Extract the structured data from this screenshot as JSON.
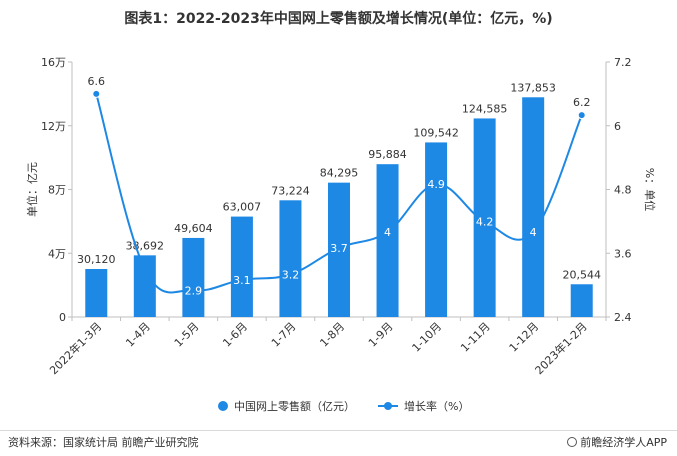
{
  "title": "图表1：2022-2023年中国网上零售额及增长情况(单位：亿元，%)",
  "chart_data": {
    "type": "bar+line",
    "categories": [
      "2022年1-3月",
      "1-4月",
      "1-5月",
      "1-6月",
      "1-7月",
      "1-8月",
      "1-9月",
      "1-10月",
      "1-11月",
      "1-12月",
      "2023年1-2月"
    ],
    "series": [
      {
        "name": "中国网上零售额（亿元）",
        "type": "bar",
        "axis": "left",
        "color": "#1e88e5",
        "values": [
          30120,
          38692,
          49604,
          63007,
          73224,
          84295,
          95884,
          109542,
          124585,
          137853,
          20544
        ],
        "labels": [
          "30,120",
          "38,692",
          "49,604",
          "63,007",
          "73,224",
          "84,295",
          "95,884",
          "109,542",
          "124,585",
          "137,853",
          "20,544"
        ]
      },
      {
        "name": "增长率（%）",
        "type": "line",
        "axis": "right",
        "color": "#1e88e5",
        "values": [
          6.6,
          3.3,
          2.9,
          3.1,
          3.2,
          3.7,
          4,
          4.9,
          4.2,
          4,
          6.2
        ],
        "labels": [
          "6.6",
          "",
          "2.9",
          "3.1",
          "3.2",
          "3.7",
          "4",
          "4.9",
          "4.2",
          "4",
          "6.2"
        ]
      }
    ],
    "y_left": {
      "label": "单位：亿元",
      "ylim": [
        0,
        160000
      ],
      "ticks": [
        0,
        40000,
        80000,
        120000,
        160000
      ],
      "tick_labels": [
        "0",
        "4万",
        "8万",
        "12万",
        "16万"
      ]
    },
    "y_right": {
      "label": "%：单位",
      "ylim": [
        2.4,
        7.2
      ],
      "ticks": [
        2.4,
        3.6,
        4.8,
        6,
        7.2
      ],
      "tick_labels": [
        "2.4",
        "3.6",
        "4.8",
        "6",
        "7.2"
      ]
    },
    "grid": false,
    "legend": "bottom"
  },
  "footer": {
    "source": "资料来源：国家统计局 前瞻产业研究院",
    "brand": "前瞻经济学人APP"
  }
}
